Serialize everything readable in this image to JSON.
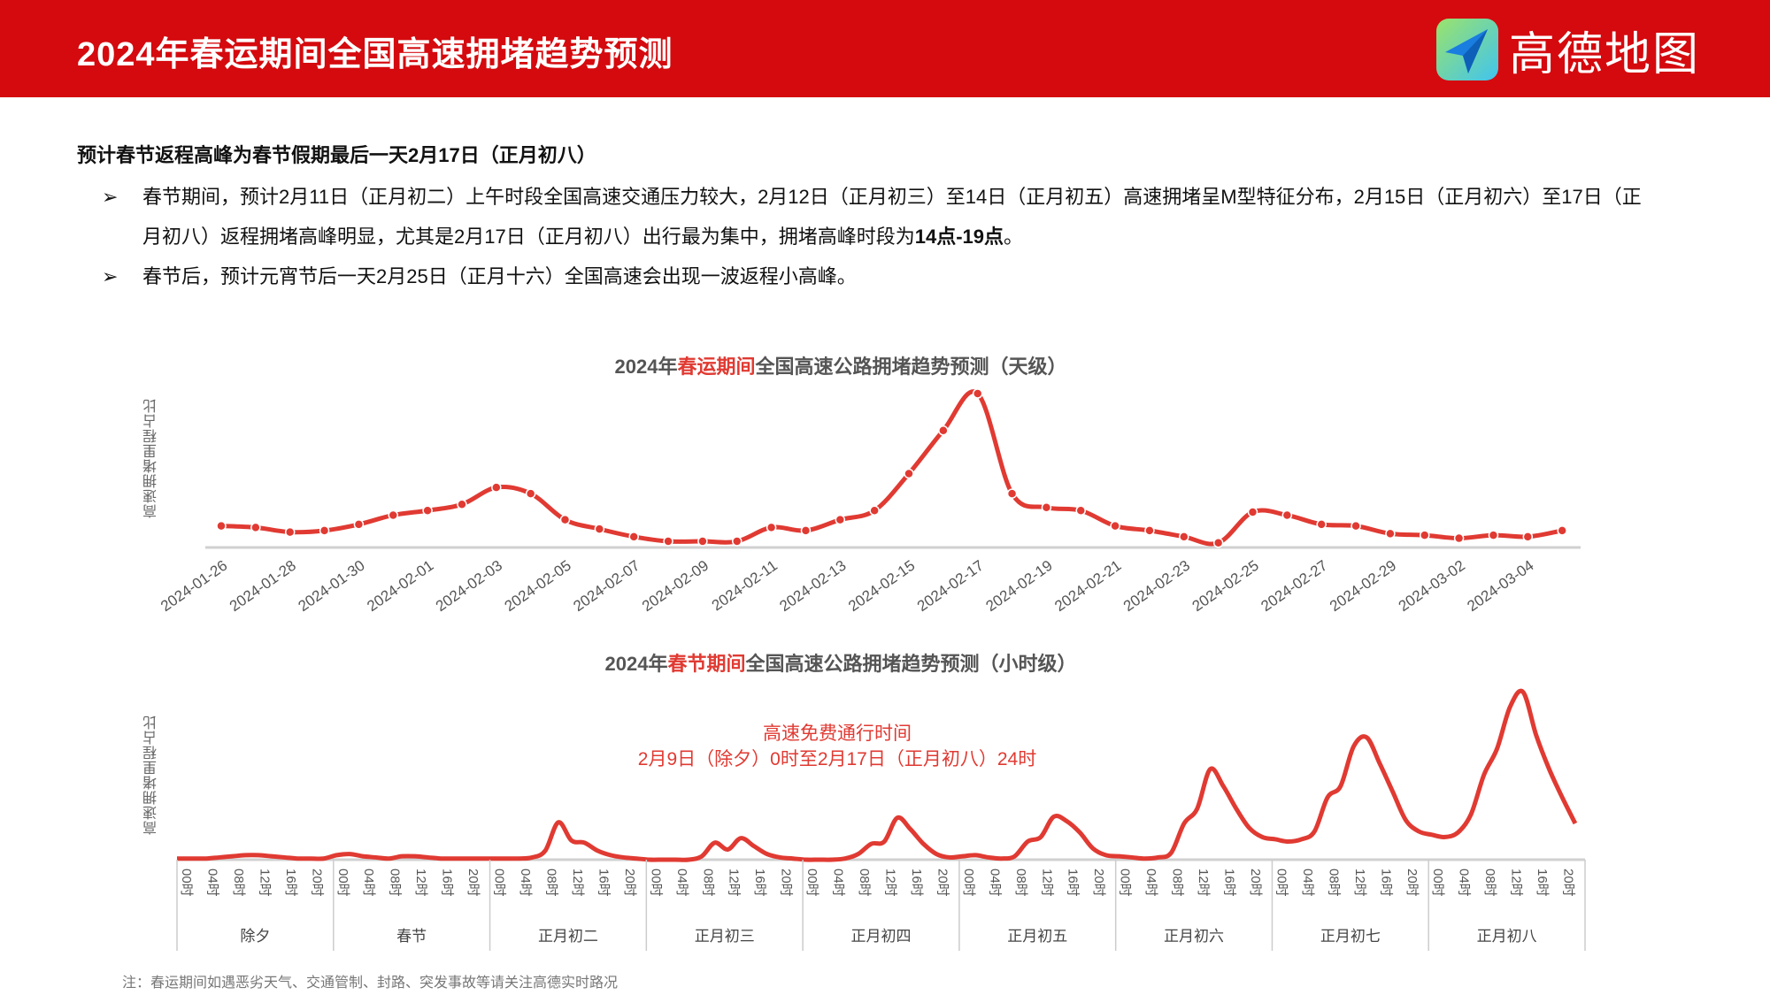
{
  "header": {
    "title": "2024年春运期间全国高速拥堵趋势预测",
    "logo_text": "高德地图"
  },
  "summary": {
    "headline": "预计春节返程高峰为春节假期最后一天2月17日（正月初八）",
    "bullet_marker": "➢",
    "bullets": [
      {
        "text": "春节期间，预计2月11日（正月初二）上午时段全国高速交通压力较大，2月12日（正月初三）至14日（正月初五）高速拥堵呈M型特征分布，2月15日（正月初六）至17日（正月初八）返程拥堵高峰明显，尤其是2月17日（正月初八）出行最为集中，拥堵高峰时段为",
        "bold": "14点-19点",
        "tail": "。"
      },
      {
        "text": "春节后，预计元宵节后一天2月25日（正月十六）全国高速会出现一波返程小高峰。",
        "bold": "",
        "tail": ""
      }
    ]
  },
  "chart_data": [
    {
      "type": "line",
      "title_pre": "2024年",
      "title_red": "春运期间",
      "title_post": "全国高速公路拥堵趋势预测（天级）",
      "ylabel": "高速拥堵里程占比",
      "xlabel": "",
      "start_date": "2024-01-26",
      "x_tick_labels": [
        "2024-01-26",
        "2024-01-28",
        "2024-01-30",
        "2024-02-01",
        "2024-02-03",
        "2024-02-05",
        "2024-02-07",
        "2024-02-09",
        "2024-02-11",
        "2024-02-13",
        "2024-02-15",
        "2024-02-17",
        "2024-02-19",
        "2024-02-21",
        "2024-02-23",
        "2024-02-25",
        "2024-02-27",
        "2024-02-29",
        "2024-03-02",
        "2024-03-04"
      ],
      "values": [
        14,
        13,
        10,
        11,
        15,
        21,
        24,
        28,
        39,
        35,
        18,
        12,
        7,
        4,
        4,
        4,
        13,
        11,
        18,
        24,
        48,
        76,
        100,
        35,
        26,
        24,
        14,
        11,
        7,
        3,
        23,
        21,
        15,
        14,
        9,
        8,
        6,
        8,
        7,
        11
      ],
      "ylim": [
        0,
        100
      ],
      "color": "#e03a32",
      "grid": false
    },
    {
      "type": "line",
      "title_pre": "2024年",
      "title_red": "春节期间",
      "title_post": "全国高速公路拥堵趋势预测（小时级）",
      "ylabel": "高速拥堵里程占比",
      "annotation": [
        "高速免费通行时间",
        "2月9日（除夕）0时至2月17日（正月初八）24时"
      ],
      "hour_labels": [
        "00时",
        "04时",
        "08时",
        "12时",
        "16时",
        "20时"
      ],
      "days": [
        "除夕",
        "春节",
        "正月初二",
        "正月初三",
        "正月初四",
        "正月初五",
        "正月初六",
        "正月初七",
        "正月初八"
      ],
      "sample_hours_step": 2,
      "values": [
        [
          1,
          1,
          1,
          2,
          3,
          4,
          4,
          3,
          2,
          1,
          1,
          1
        ],
        [
          4,
          5,
          3,
          2,
          1,
          3,
          3,
          2,
          1,
          1,
          1,
          1
        ],
        [
          1,
          1,
          1,
          2,
          8,
          33,
          17,
          15,
          8,
          4,
          2,
          1
        ],
        [
          0,
          0,
          0,
          0,
          3,
          15,
          9,
          19,
          12,
          5,
          2,
          1
        ],
        [
          0,
          0,
          0,
          1,
          5,
          14,
          16,
          37,
          27,
          14,
          5,
          2
        ],
        [
          3,
          4,
          2,
          1,
          3,
          16,
          20,
          38,
          34,
          24,
          10,
          4
        ],
        [
          3,
          2,
          1,
          2,
          6,
          32,
          45,
          80,
          65,
          45,
          28,
          20
        ],
        [
          18,
          16,
          18,
          25,
          55,
          65,
          100,
          108,
          85,
          60,
          35,
          25
        ],
        [
          22,
          20,
          24,
          40,
          75,
          98,
          135,
          148,
          110,
          80,
          55,
          32
        ]
      ],
      "ylim": [
        0,
        150
      ],
      "color": "#e03a32",
      "grid": false
    }
  ],
  "footnote": "注：春运期间如遇恶劣天气、交通管制、封路、突发事故等请关注高德实时路况"
}
